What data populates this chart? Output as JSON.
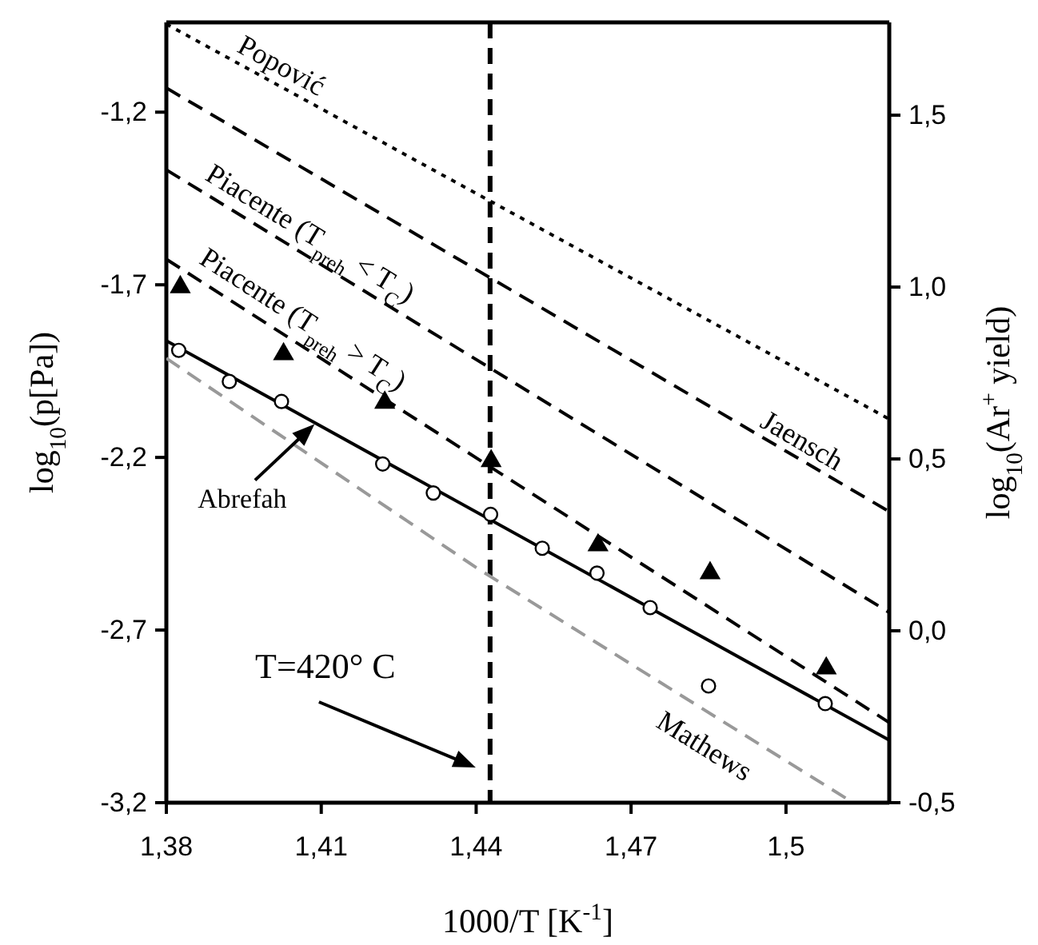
{
  "chart_data": {
    "type": "line",
    "xlabel": "1000/T [K$^{-1}$]",
    "ylabel": "log$_{10}$(p[Pa])",
    "y2label": "log$_{10}$(Ar$^{+}$ yield)",
    "xlim": [
      1.38,
      1.52
    ],
    "ylim": [
      -3.2,
      -0.94
    ],
    "y2lim": [
      -0.5,
      1.77
    ],
    "xticks": [
      {
        "value": 1.38,
        "label": "1,38"
      },
      {
        "value": 1.41,
        "label": "1,41"
      },
      {
        "value": 1.44,
        "label": "1,44"
      },
      {
        "value": 1.47,
        "label": "1,47"
      },
      {
        "value": 1.5,
        "label": "1,5"
      }
    ],
    "yticks": [
      {
        "value": -3.2,
        "label": "-3,2"
      },
      {
        "value": -2.7,
        "label": "-2,7"
      },
      {
        "value": -2.2,
        "label": "-2,2"
      },
      {
        "value": -1.7,
        "label": "-1,7"
      },
      {
        "value": -1.2,
        "label": "-1,2"
      }
    ],
    "y2ticks": [
      {
        "value": -0.5,
        "label": "-0,5"
      },
      {
        "value": 0,
        "label": "0,0"
      },
      {
        "value": 0.5,
        "label": "0,5"
      },
      {
        "value": 1,
        "label": "1,0"
      },
      {
        "value": 1.5,
        "label": "1,5"
      }
    ],
    "grid": false,
    "ref_lines": [
      {
        "axis": "x",
        "value": 1.4427,
        "color": "#000000",
        "line_style": "dashed"
      }
    ],
    "annotations": [
      "T=420° C"
    ],
    "series": [
      {
        "name": "Popović",
        "color": "#000000",
        "line_style": "dotted",
        "x": [
          1.38,
          1.52
        ],
        "values": [
          -0.945,
          -2.089
        ]
      },
      {
        "name": "Jaensch",
        "color": "#000000",
        "line_style": "dashed",
        "x": [
          1.38,
          1.52
        ],
        "values": [
          -1.13,
          -2.357
        ]
      },
      {
        "name": "Piacente (T$_{preh}$ < T$_{C}$)",
        "color": "#000000",
        "line_style": "dashed",
        "x": [
          1.38,
          1.52
        ],
        "values": [
          -1.367,
          -2.649
        ]
      },
      {
        "name": "Piacente (T$_{preh}$ > T$_{C}$)",
        "color": "#000000",
        "line_style": "dashed",
        "x": [
          1.38,
          1.52
        ],
        "values": [
          -1.626,
          -2.968
        ]
      },
      {
        "name": "Abrefah",
        "color": "#000000",
        "line_style": "solid",
        "x": [
          1.38,
          1.52
        ],
        "values": [
          -1.862,
          -3.019
        ]
      },
      {
        "name": "Mathews",
        "color": "#999999",
        "line_style": "dashed",
        "x": [
          1.38,
          1.44,
          1.513
        ],
        "values": [
          -1.913,
          -2.519,
          -3.2
        ]
      },
      {
        "type": "scatter",
        "marker": "circle",
        "color": "#000000",
        "x": [
          1.3824,
          1.3922,
          1.4023,
          1.4219,
          1.4317,
          1.4428,
          1.4528,
          1.4634,
          1.4737,
          1.485,
          1.5076
        ],
        "values": [
          -1.89,
          -1.98,
          -2.038,
          -2.219,
          -2.303,
          -2.365,
          -2.463,
          -2.535,
          -2.635,
          -2.862,
          -2.913
        ]
      },
      {
        "type": "scatter",
        "marker": "triangle",
        "axis": "y2",
        "color": "#000000",
        "x": [
          1.3827,
          1.4027,
          1.4223,
          1.4429,
          1.4636,
          1.4853,
          1.5078
        ],
        "values": [
          1.0,
          0.805,
          0.664,
          0.494,
          0.249,
          0.168,
          -0.109
        ]
      }
    ]
  }
}
